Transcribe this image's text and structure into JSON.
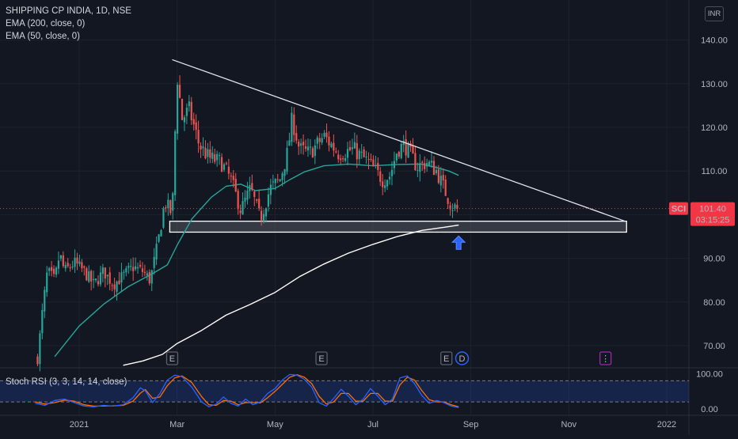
{
  "legend": {
    "symbol_line": "SHIPPING CP INDIA, 1D, NSE",
    "ema200": "EMA (200, close, 0)",
    "ema50": "EMA (50, close, 0)"
  },
  "currency_button": "INR",
  "price_label": {
    "ticker": "SCI",
    "price": "101.40",
    "countdown": "03:15:25"
  },
  "events": [
    {
      "label": "E",
      "month_index": 1.9,
      "kind": "earnings"
    },
    {
      "label": "E",
      "month_index": 4.95,
      "kind": "earnings"
    },
    {
      "label": "E",
      "month_index": 7.5,
      "kind": "earnings"
    },
    {
      "label": "D",
      "month_index": 7.82,
      "kind": "dividend"
    },
    {
      "label": "⋮",
      "month_index": 10.75,
      "kind": "future"
    }
  ],
  "stoch_panel": {
    "title": "Stoch RSI (3, 3, 14, 14, close)",
    "ylim": [
      -10,
      110
    ],
    "ticks": [
      "100.00",
      "0.00"
    ],
    "bands": [
      80,
      20
    ]
  },
  "colors": {
    "background": "#131722",
    "up": "#26a69a",
    "down": "#ef5350",
    "ema50": "#26a69a",
    "ema200": "#ffffff",
    "k_line": "#2962ff",
    "d_line": "#ff6d00",
    "accent_red": "#f23645",
    "arrow": "#2962ff"
  },
  "chart_data": {
    "type": "candlestick",
    "x_axis": {
      "ticks": [
        "2021",
        "Mar",
        "May",
        "Jul",
        "Sep",
        "Nov",
        "2022"
      ],
      "tick_month_index": [
        0,
        2,
        4,
        6,
        8,
        10,
        12
      ],
      "range_month_index": [
        -0.9,
        12.4
      ]
    },
    "y_axis": {
      "ticks": [
        "140.00",
        "130.00",
        "120.00",
        "110.00",
        "100.00",
        "90.00",
        "80.00",
        "70.00"
      ],
      "ylim": [
        63.5,
        147
      ]
    },
    "current_price": 101.4,
    "price_anchors_month_index": [
      [
        -0.85,
        67
      ],
      [
        -0.75,
        78
      ],
      [
        -0.65,
        87
      ],
      [
        -0.5,
        85
      ],
      [
        -0.4,
        91
      ],
      [
        -0.3,
        87
      ],
      [
        -0.1,
        89
      ],
      [
        0.1,
        87
      ],
      [
        0.3,
        84
      ],
      [
        0.5,
        87
      ],
      [
        0.7,
        84
      ],
      [
        0.9,
        86
      ],
      [
        1.1,
        88
      ],
      [
        1.3,
        87
      ],
      [
        1.45,
        85
      ],
      [
        1.6,
        93
      ],
      [
        1.75,
        103
      ],
      [
        1.9,
        100
      ],
      [
        2.0,
        132
      ],
      [
        2.1,
        122
      ],
      [
        2.25,
        124
      ],
      [
        2.45,
        116
      ],
      [
        2.65,
        113
      ],
      [
        2.9,
        112
      ],
      [
        3.1,
        108
      ],
      [
        3.3,
        101
      ],
      [
        3.5,
        106
      ],
      [
        3.7,
        99
      ],
      [
        3.9,
        106
      ],
      [
        4.1,
        108
      ],
      [
        4.25,
        114
      ],
      [
        4.35,
        122
      ],
      [
        4.5,
        115
      ],
      [
        4.7,
        114
      ],
      [
        5.0,
        118
      ],
      [
        5.3,
        114
      ],
      [
        5.6,
        115
      ],
      [
        5.9,
        112
      ],
      [
        6.2,
        108
      ],
      [
        6.35,
        109
      ],
      [
        6.5,
        115
      ],
      [
        6.65,
        116
      ],
      [
        6.9,
        111
      ],
      [
        7.1,
        112
      ],
      [
        7.3,
        110
      ],
      [
        7.45,
        106
      ],
      [
        7.6,
        102
      ],
      [
        7.75,
        101.4
      ]
    ],
    "ema50_points": [
      [
        -0.5,
        67.5
      ],
      [
        0.0,
        74.5
      ],
      [
        0.5,
        79.5
      ],
      [
        1.0,
        83.5
      ],
      [
        1.5,
        86.5
      ],
      [
        1.8,
        88.5
      ],
      [
        2.0,
        93
      ],
      [
        2.3,
        99
      ],
      [
        2.7,
        104
      ],
      [
        3.0,
        106.5
      ],
      [
        3.3,
        107
      ],
      [
        3.6,
        105.5
      ],
      [
        4.0,
        106
      ],
      [
        4.3,
        108
      ],
      [
        4.6,
        109.8
      ],
      [
        5.0,
        111.2
      ],
      [
        5.5,
        111.6
      ],
      [
        6.0,
        111.2
      ],
      [
        6.5,
        111.5
      ],
      [
        7.0,
        111.6
      ],
      [
        7.3,
        110.8
      ],
      [
        7.55,
        110
      ],
      [
        7.75,
        109
      ]
    ],
    "ema200_points": [
      [
        0.9,
        65.5
      ],
      [
        1.3,
        66.5
      ],
      [
        1.7,
        68
      ],
      [
        2.0,
        70.5
      ],
      [
        2.5,
        73.5
      ],
      [
        3.0,
        77
      ],
      [
        3.5,
        79.5
      ],
      [
        4.0,
        82.2
      ],
      [
        4.5,
        85.8
      ],
      [
        5.0,
        88.7
      ],
      [
        5.5,
        91.2
      ],
      [
        6.0,
        93.2
      ],
      [
        6.5,
        95
      ],
      [
        7.0,
        96.4
      ],
      [
        7.5,
        97.2
      ],
      [
        7.75,
        97.6
      ]
    ],
    "trendline": {
      "from": [
        1.9,
        135.5
      ],
      "to": [
        11.15,
        98.5
      ]
    },
    "support_zone": {
      "from_month_index": 1.85,
      "to_month_index": 11.18,
      "low": 96,
      "high": 98.5
    },
    "arrow_up": {
      "month_index": 7.75,
      "price": 93.5
    },
    "stoch_rsi": {
      "k": [
        [
          -0.9,
          16
        ],
        [
          -0.7,
          10
        ],
        [
          -0.5,
          24
        ],
        [
          -0.3,
          28
        ],
        [
          -0.1,
          18
        ],
        [
          0.1,
          8
        ],
        [
          0.3,
          6
        ],
        [
          0.5,
          10
        ],
        [
          0.7,
          8
        ],
        [
          0.9,
          12
        ],
        [
          1.1,
          32
        ],
        [
          1.25,
          60
        ],
        [
          1.35,
          52
        ],
        [
          1.5,
          18
        ],
        [
          1.65,
          44
        ],
        [
          1.8,
          82
        ],
        [
          1.95,
          96
        ],
        [
          2.1,
          92
        ],
        [
          2.3,
          62
        ],
        [
          2.5,
          20
        ],
        [
          2.65,
          6
        ],
        [
          2.8,
          14
        ],
        [
          2.95,
          34
        ],
        [
          3.1,
          16
        ],
        [
          3.25,
          8
        ],
        [
          3.4,
          28
        ],
        [
          3.55,
          12
        ],
        [
          3.7,
          20
        ],
        [
          3.85,
          44
        ],
        [
          4.0,
          58
        ],
        [
          4.15,
          82
        ],
        [
          4.3,
          98
        ],
        [
          4.45,
          96
        ],
        [
          4.6,
          84
        ],
        [
          4.75,
          62
        ],
        [
          4.9,
          18
        ],
        [
          5.05,
          8
        ],
        [
          5.2,
          30
        ],
        [
          5.35,
          56
        ],
        [
          5.5,
          36
        ],
        [
          5.65,
          12
        ],
        [
          5.8,
          28
        ],
        [
          5.95,
          58
        ],
        [
          6.1,
          36
        ],
        [
          6.25,
          12
        ],
        [
          6.4,
          28
        ],
        [
          6.55,
          88
        ],
        [
          6.7,
          94
        ],
        [
          6.85,
          72
        ],
        [
          7.0,
          38
        ],
        [
          7.15,
          16
        ],
        [
          7.3,
          24
        ],
        [
          7.45,
          18
        ],
        [
          7.6,
          8
        ],
        [
          7.75,
          4
        ]
      ],
      "d": [
        [
          -0.9,
          20
        ],
        [
          -0.7,
          14
        ],
        [
          -0.5,
          18
        ],
        [
          -0.3,
          25
        ],
        [
          -0.1,
          22
        ],
        [
          0.1,
          12
        ],
        [
          0.3,
          8
        ],
        [
          0.5,
          8
        ],
        [
          0.7,
          9
        ],
        [
          0.9,
          10
        ],
        [
          1.1,
          22
        ],
        [
          1.25,
          45
        ],
        [
          1.35,
          55
        ],
        [
          1.5,
          30
        ],
        [
          1.65,
          34
        ],
        [
          1.8,
          66
        ],
        [
          1.95,
          88
        ],
        [
          2.1,
          94
        ],
        [
          2.3,
          75
        ],
        [
          2.5,
          35
        ],
        [
          2.65,
          12
        ],
        [
          2.8,
          10
        ],
        [
          2.95,
          24
        ],
        [
          3.1,
          22
        ],
        [
          3.25,
          12
        ],
        [
          3.4,
          18
        ],
        [
          3.55,
          18
        ],
        [
          3.7,
          17
        ],
        [
          3.85,
          32
        ],
        [
          4.0,
          50
        ],
        [
          4.15,
          70
        ],
        [
          4.3,
          90
        ],
        [
          4.45,
          97
        ],
        [
          4.6,
          90
        ],
        [
          4.75,
          72
        ],
        [
          4.9,
          36
        ],
        [
          5.05,
          14
        ],
        [
          5.2,
          20
        ],
        [
          5.35,
          44
        ],
        [
          5.5,
          44
        ],
        [
          5.65,
          22
        ],
        [
          5.8,
          22
        ],
        [
          5.95,
          44
        ],
        [
          6.1,
          44
        ],
        [
          6.25,
          22
        ],
        [
          6.4,
          22
        ],
        [
          6.55,
          68
        ],
        [
          6.7,
          90
        ],
        [
          6.85,
          82
        ],
        [
          7.0,
          52
        ],
        [
          7.15,
          26
        ],
        [
          7.3,
          20
        ],
        [
          7.45,
          20
        ],
        [
          7.6,
          12
        ],
        [
          7.75,
          6
        ]
      ]
    }
  }
}
